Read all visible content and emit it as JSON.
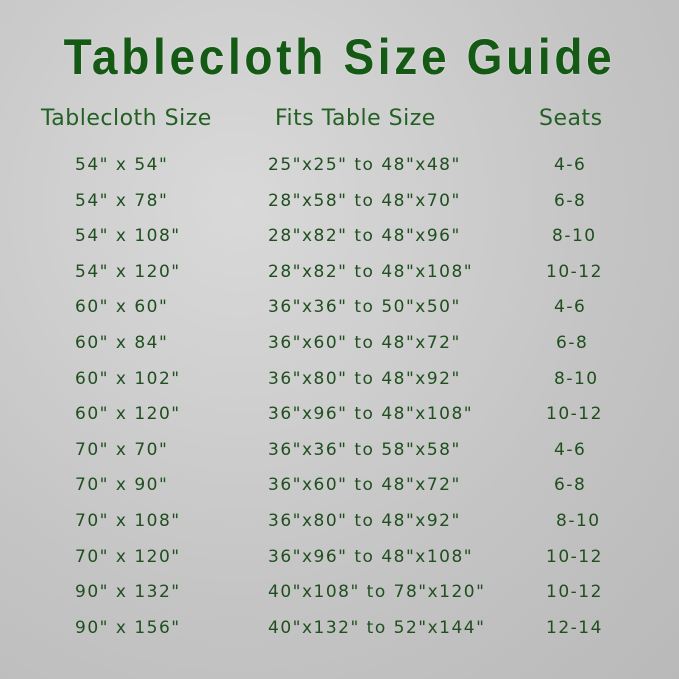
{
  "title": "Tablecloth Size Guide",
  "headers": [
    "Tablecloth Size",
    "Fits Table Size",
    "Seats"
  ],
  "colors": {
    "title": "#145a14",
    "header": "#236023",
    "text": "#1f4f1f"
  },
  "rows": [
    [
      "54\" x 54\"",
      "25\"x25\" to 48\"x48\"",
      "4-6"
    ],
    [
      "54\" x 78\"",
      "28\"x58\" to 48\"x70\"",
      "6-8"
    ],
    [
      "54\" x 108\"",
      "28\"x82\" to 48\"x96\"",
      "8-10"
    ],
    [
      "54\" x 120\"",
      "28\"x82\" to 48\"x108\"",
      "10-12"
    ],
    [
      "60\" x 60\"",
      "36\"x36\" to 50\"x50\"",
      "4-6"
    ],
    [
      "60\" x 84\"",
      "36\"x60\" to 48\"x72\"",
      "6-8"
    ],
    [
      "60\" x 102\"",
      "36\"x80\" to 48\"x92\"",
      "8-10"
    ],
    [
      "60\" x 120\"",
      "36\"x96\" to 48\"x108\"",
      "10-12"
    ],
    [
      "70\" x 70\"",
      "36\"x36\" to 58\"x58\"",
      "4-6"
    ],
    [
      "70\" x 90\"",
      "36\"x60\" to 48\"x72\"",
      "6-8"
    ],
    [
      "70\" x 108\"",
      "36\"x80\" to 48\"x92\"",
      "8-10"
    ],
    [
      "70\" x 120\"",
      "36\"x96\" to 48\"x108\"",
      "10-12"
    ],
    [
      "90\" x 132\"",
      "40\"x108\" to 78\"x120\"",
      "10-12"
    ],
    [
      "90\" x 156\"",
      "40\"x132\" to 52\"x144\"",
      "12-14"
    ]
  ]
}
